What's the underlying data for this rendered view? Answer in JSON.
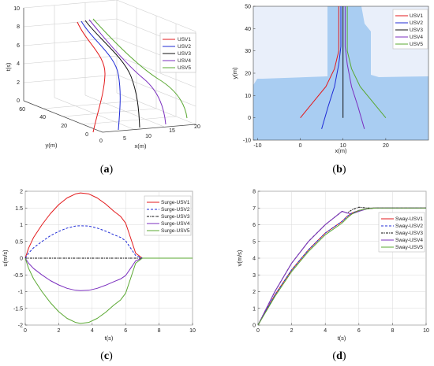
{
  "colors": {
    "USV1": "#e31a1c",
    "USV2": "#1f2bd6",
    "USV3": "#111111",
    "USV4": "#7b2fbf",
    "USV5": "#5aa832",
    "water": "#a9cdf2",
    "land": "#e9effa",
    "grid": "#d9d9d9"
  },
  "captions": [
    "(a)",
    "(b)",
    "(c)",
    "(d)"
  ],
  "chart_data": [
    {
      "id": "a",
      "type": "line3d",
      "xlabel": "x(m)",
      "ylabel": "y(m)",
      "zlabel": "t(s)",
      "xticks": [
        "0",
        "5",
        "10",
        "15",
        "20"
      ],
      "yticks": [
        "0",
        "20",
        "40",
        "60"
      ],
      "zticks": [
        "0",
        "2",
        "4",
        "6",
        "8",
        "10"
      ],
      "legend": [
        "USV1",
        "USV2",
        "USV3",
        "USV4",
        "USV5"
      ],
      "legend_position": "top-right",
      "series": [
        {
          "name": "USV1",
          "x_start": 0,
          "x_end": 9,
          "x0": [
            0,
            0
          ],
          "note": ""
        },
        {
          "name": "USV2",
          "x_start": 5,
          "x_end": 9.5
        },
        {
          "name": "USV3",
          "x_start": 10,
          "x_end": 10
        },
        {
          "name": "USV4",
          "x_start": 15,
          "x_end": 10.5
        },
        {
          "name": "USV5",
          "x_start": 20,
          "x_end": 11
        }
      ]
    },
    {
      "id": "b",
      "type": "line",
      "xlabel": "x(m)",
      "ylabel": "y(m)",
      "xlim": [
        -11,
        30
      ],
      "ylim": [
        -10,
        50
      ],
      "xticks": [
        "-10",
        "0",
        "10",
        "20"
      ],
      "yticks": [
        "-10",
        "0",
        "10",
        "20",
        "30",
        "40",
        "50"
      ],
      "legend": [
        "USV1",
        "USV2",
        "USV3",
        "USV4",
        "USV5"
      ],
      "legend_position": "top-right",
      "series": [
        {
          "name": "USV1",
          "points": [
            [
              0,
              0
            ],
            [
              3,
              7
            ],
            [
              6,
              14
            ],
            [
              8,
              22
            ],
            [
              9,
              30
            ],
            [
              9,
              50
            ]
          ]
        },
        {
          "name": "USV2",
          "points": [
            [
              5,
              -5
            ],
            [
              6.5,
              5
            ],
            [
              8,
              14
            ],
            [
              9,
              24
            ],
            [
              9.5,
              32
            ],
            [
              9.5,
              50
            ]
          ]
        },
        {
          "name": "USV3",
          "points": [
            [
              10,
              0
            ],
            [
              10,
              50
            ]
          ]
        },
        {
          "name": "USV4",
          "points": [
            [
              15,
              -5
            ],
            [
              13.5,
              5
            ],
            [
              12,
              14
            ],
            [
              11,
              24
            ],
            [
              10.5,
              32
            ],
            [
              10.5,
              50
            ]
          ]
        },
        {
          "name": "USV5",
          "points": [
            [
              20,
              0
            ],
            [
              17,
              7
            ],
            [
              14,
              14
            ],
            [
              12,
              22
            ],
            [
              11,
              30
            ],
            [
              11,
              50
            ]
          ]
        }
      ]
    },
    {
      "id": "c",
      "type": "line",
      "xlabel": "t(s)",
      "ylabel": "u(m/s)",
      "xlim": [
        0,
        10
      ],
      "ylim": [
        -2,
        2
      ],
      "xticks": [
        "0",
        "2",
        "4",
        "6",
        "8",
        "10"
      ],
      "yticks": [
        "-2",
        "-1.5",
        "-1",
        "-0.5",
        "0",
        "0.5",
        "1",
        "1.5",
        "2"
      ],
      "legend": [
        "Surge-USV1",
        "Surge-USV2",
        "Surge-USV3",
        "Surge-USV4",
        "Surge-USV5"
      ],
      "legend_position": "top-right",
      "series": [
        {
          "name": "Surge-USV1",
          "x": [
            0,
            0.2,
            0.5,
            1,
            1.5,
            2,
            2.5,
            3,
            3.3,
            3.8,
            4.3,
            4.8,
            5.3,
            5.7,
            6,
            6.3,
            6.6,
            7,
            10
          ],
          "values": [
            0,
            0.3,
            0.62,
            1.0,
            1.33,
            1.6,
            1.8,
            1.92,
            1.95,
            1.92,
            1.8,
            1.62,
            1.4,
            1.25,
            1.05,
            0.6,
            0.15,
            0,
            0
          ]
        },
        {
          "name": "Surge-USV2",
          "x": [
            0,
            0.2,
            0.5,
            1,
            1.5,
            2,
            2.5,
            3,
            3.3,
            3.8,
            4.3,
            4.8,
            5.3,
            5.7,
            6,
            6.3,
            6.6,
            7,
            10
          ],
          "values": [
            0,
            0.15,
            0.31,
            0.5,
            0.67,
            0.8,
            0.9,
            0.96,
            0.97,
            0.96,
            0.9,
            0.81,
            0.7,
            0.62,
            0.52,
            0.3,
            0.08,
            0,
            0
          ]
        },
        {
          "name": "Surge-USV3",
          "x": [
            0,
            10
          ],
          "values": [
            0,
            0
          ]
        },
        {
          "name": "Surge-USV4",
          "x": [
            0,
            0.2,
            0.5,
            1,
            1.5,
            2,
            2.5,
            3,
            3.3,
            3.8,
            4.3,
            4.8,
            5.3,
            5.7,
            6,
            6.3,
            6.6,
            7,
            10
          ],
          "values": [
            0,
            -0.15,
            -0.31,
            -0.5,
            -0.67,
            -0.8,
            -0.9,
            -0.96,
            -0.97,
            -0.96,
            -0.9,
            -0.81,
            -0.7,
            -0.62,
            -0.52,
            -0.3,
            -0.08,
            0,
            0
          ]
        },
        {
          "name": "Surge-USV5",
          "x": [
            0,
            0.2,
            0.5,
            1,
            1.5,
            2,
            2.5,
            3,
            3.3,
            3.8,
            4.3,
            4.8,
            5.3,
            5.7,
            6,
            6.3,
            6.6,
            7,
            10
          ],
          "values": [
            0,
            -0.3,
            -0.62,
            -1.0,
            -1.33,
            -1.6,
            -1.8,
            -1.92,
            -1.95,
            -1.92,
            -1.8,
            -1.62,
            -1.4,
            -1.25,
            -1.05,
            -0.6,
            -0.15,
            0,
            0
          ]
        }
      ]
    },
    {
      "id": "d",
      "type": "line",
      "xlabel": "t(s)",
      "ylabel": "v(m/s)",
      "xlim": [
        0,
        10
      ],
      "ylim": [
        0,
        8
      ],
      "xticks": [
        "0",
        "2",
        "4",
        "6",
        "8",
        "10"
      ],
      "yticks": [
        "0",
        "1",
        "2",
        "3",
        "4",
        "5",
        "6",
        "7",
        "8"
      ],
      "legend": [
        "Sway-USV1",
        "Sway-USV2",
        "Sway-USV3",
        "Sway-USV4",
        "Sway-USV5"
      ],
      "legend_position": "top-right",
      "series": [
        {
          "name": "Sway-USV1",
          "x": [
            0,
            1,
            2,
            3,
            4,
            5,
            5.3,
            5.6,
            6,
            6.5,
            7,
            8,
            10
          ],
          "values": [
            0,
            1.8,
            3.3,
            4.5,
            5.5,
            6.2,
            6.5,
            6.7,
            6.85,
            6.95,
            7,
            7,
            7
          ]
        },
        {
          "name": "Sway-USV2",
          "x": [
            0,
            1,
            2,
            3,
            4,
            5,
            5.3,
            5.6,
            6,
            6.5,
            7,
            8,
            10
          ],
          "values": [
            0,
            1.8,
            3.3,
            4.5,
            5.5,
            6.2,
            6.5,
            6.7,
            6.85,
            6.95,
            7,
            7,
            7
          ]
        },
        {
          "name": "Sway-USV3",
          "x": [
            0,
            1,
            2,
            3,
            4,
            5,
            5.3,
            5.6,
            6,
            6.5,
            7,
            8,
            10
          ],
          "values": [
            0,
            2.0,
            3.7,
            5.0,
            6.0,
            6.8,
            6.7,
            6.9,
            7.05,
            7,
            7,
            7,
            7
          ]
        },
        {
          "name": "Sway-USV4",
          "x": [
            0,
            1,
            2,
            3,
            4,
            5,
            5.3,
            5.6,
            6,
            6.5,
            7,
            8,
            10
          ],
          "values": [
            0,
            2.0,
            3.7,
            5.0,
            6.0,
            6.8,
            6.7,
            6.65,
            6.8,
            6.95,
            7,
            7,
            7
          ]
        },
        {
          "name": "Sway-USV5",
          "x": [
            0,
            1,
            2,
            3,
            4,
            5,
            5.3,
            5.6,
            6,
            6.5,
            7,
            8,
            10
          ],
          "values": [
            0,
            1.7,
            3.2,
            4.4,
            5.4,
            6.1,
            6.4,
            6.65,
            6.85,
            6.95,
            7,
            7,
            7
          ]
        }
      ]
    }
  ]
}
